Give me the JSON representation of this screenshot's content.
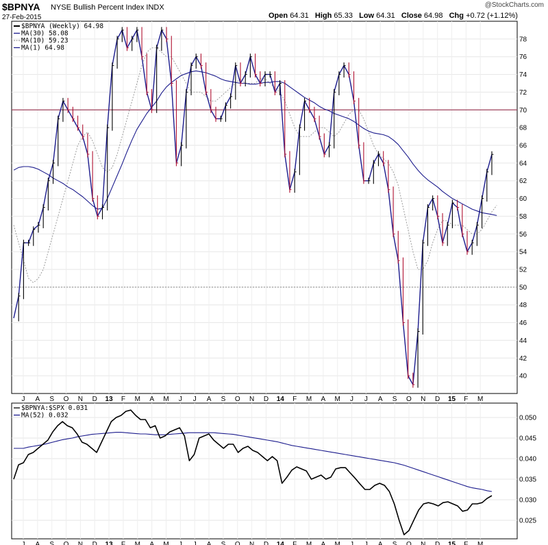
{
  "header": {
    "ticker": "$BPNYA",
    "description": "NYSE Bullish Percent Index",
    "exchange": "INDX",
    "date": "27-Feb-2015",
    "open_label": "Open",
    "open": "64.31",
    "high_label": "High",
    "high": "65.33",
    "low_label": "Low",
    "low": "64.31",
    "close_label": "Close",
    "close": "64.98",
    "chg_label": "Chg",
    "chg": "+0.72 (+1.12%)",
    "brand": "@StockCharts.com"
  },
  "chart_data": [
    {
      "type": "line",
      "legend": [
        {
          "label": "$BPNYA (Weekly) 64.98",
          "color": "#000000",
          "style": "bars"
        },
        {
          "label": "MA(30) 58.08",
          "color": "#1a1a8c",
          "style": "solid"
        },
        {
          "label": "MA(10) 59.23",
          "color": "#9a9a9a",
          "style": "dotted"
        },
        {
          "label": "MA(1) 64.98",
          "color": "#1a1a8c",
          "style": "solid"
        }
      ],
      "x_labels": [
        "J",
        "A",
        "S",
        "O",
        "N",
        "D",
        "13",
        "F",
        "M",
        "A",
        "M",
        "J",
        "J",
        "A",
        "S",
        "O",
        "N",
        "D",
        "14",
        "F",
        "M",
        "A",
        "M",
        "J",
        "J",
        "A",
        "S",
        "O",
        "N",
        "D",
        "15",
        "F",
        "M"
      ],
      "ylim": [
        38,
        80
      ],
      "yticks": [
        40,
        42,
        44,
        46,
        48,
        50,
        52,
        54,
        56,
        58,
        60,
        62,
        64,
        66,
        68,
        70,
        72,
        74,
        76,
        78
      ],
      "reference_lines": [
        {
          "value": 70,
          "color": "#8b1a3a",
          "style": "solid"
        },
        {
          "value": 50,
          "color": "#888888",
          "style": "dotted"
        }
      ],
      "series": [
        {
          "name": "$BPNYA",
          "values": [
            46.5,
            49,
            55,
            55,
            56.5,
            57,
            59,
            62,
            64,
            69,
            71,
            70,
            69,
            68,
            67,
            65,
            60,
            58,
            59,
            68,
            75,
            78,
            79,
            77,
            78,
            79,
            76,
            72,
            70,
            77,
            79,
            78,
            73,
            64,
            66,
            72,
            75,
            76,
            75,
            72,
            70,
            69,
            69,
            70.5,
            71.5,
            75,
            73,
            74,
            76,
            74,
            73,
            74,
            74,
            72,
            73,
            65,
            61,
            63,
            68,
            71,
            70,
            69,
            67,
            65,
            66,
            72,
            74,
            75,
            74,
            71,
            66,
            62,
            62,
            64,
            65,
            64,
            61,
            56,
            53,
            46,
            40,
            39,
            45,
            55,
            59,
            60,
            58,
            55,
            57,
            59.5,
            59,
            56,
            54,
            55,
            57,
            60,
            63,
            64.98
          ]
        },
        {
          "name": "MA(30)",
          "values": [
            63.2,
            63.5,
            63.6,
            63.6,
            63.5,
            63.3,
            63.0,
            62.7,
            62.3,
            62.0,
            61.7,
            61.3,
            61.0,
            60.6,
            60.2,
            59.7,
            59.2,
            58.8,
            58.9,
            60.0,
            61.3,
            62.6,
            63.9,
            65.3,
            66.6,
            67.8,
            68.7,
            69.6,
            70.3,
            71.0,
            71.9,
            72.6,
            73.1,
            73.5,
            73.9,
            74.1,
            74.3,
            74.4,
            74.3,
            74.2,
            74.0,
            73.8,
            73.5,
            73.3,
            73.2,
            73.1,
            73.0,
            73.0,
            72.9,
            72.9,
            73.0,
            73.1,
            73.1,
            73.2,
            73.2,
            73.0,
            72.6,
            72.2,
            71.8,
            71.4,
            71.1,
            70.8,
            70.4,
            70.1,
            69.9,
            69.6,
            69.4,
            69.2,
            69.0,
            68.7,
            68.3,
            67.9,
            67.6,
            67.4,
            67.3,
            67.2,
            67.0,
            66.6,
            66.1,
            65.4,
            64.7,
            63.9,
            63.2,
            62.6,
            62.1,
            61.7,
            61.3,
            60.8,
            60.4,
            60.0,
            59.7,
            59.4,
            59.1,
            58.8,
            58.6,
            58.4,
            58.3,
            58.2,
            58.08
          ]
        },
        {
          "name": "MA(10)",
          "values": [
            57,
            55,
            53,
            51,
            50.5,
            51,
            52,
            54,
            56,
            58,
            60,
            62,
            64,
            66,
            67,
            67.5,
            66.5,
            65,
            63.5,
            63,
            63.5,
            65,
            67,
            69,
            71,
            73,
            75,
            76.5,
            77,
            77,
            76.5,
            76,
            76,
            75,
            74,
            73,
            72,
            72,
            72,
            71.5,
            71,
            71,
            71.5,
            72,
            72.5,
            73,
            73.5,
            73,
            73,
            73,
            73.5,
            73.5,
            73,
            72.5,
            72,
            71,
            69.5,
            68,
            67,
            67,
            67,
            67.5,
            68,
            68,
            67.5,
            67,
            67.5,
            68.5,
            69.5,
            70,
            70,
            69,
            67.5,
            66,
            65,
            64.5,
            64,
            63,
            61.5,
            59,
            56.5,
            54,
            52,
            52,
            53,
            55,
            56.5,
            57.5,
            57.5,
            57,
            57,
            57,
            56.5,
            56,
            56,
            56.5,
            57.5,
            58.5,
            59.23
          ]
        }
      ]
    },
    {
      "type": "line",
      "legend": [
        {
          "label": "$BPNYA:$SPX 0.031",
          "color": "#000000",
          "style": "solid"
        },
        {
          "label": "MA(52) 0.032",
          "color": "#1a1a8c",
          "style": "solid"
        }
      ],
      "x_labels": [
        "J",
        "A",
        "S",
        "O",
        "N",
        "D",
        "13",
        "F",
        "M",
        "A",
        "M",
        "J",
        "J",
        "A",
        "S",
        "O",
        "N",
        "D",
        "14",
        "F",
        "M",
        "A",
        "M",
        "J",
        "J",
        "A",
        "S",
        "O",
        "N",
        "D",
        "15",
        "F",
        "M"
      ],
      "ylim": [
        0.0205,
        0.0535
      ],
      "yticks": [
        0.025,
        0.03,
        0.035,
        0.04,
        0.045,
        0.05
      ],
      "series": [
        {
          "name": "$BPNYA:$SPX",
          "values": [
            0.035,
            0.0385,
            0.039,
            0.041,
            0.0415,
            0.0425,
            0.0435,
            0.0445,
            0.0465,
            0.048,
            0.049,
            0.048,
            0.0475,
            0.046,
            0.044,
            0.0435,
            0.0425,
            0.0415,
            0.044,
            0.0465,
            0.049,
            0.05,
            0.0505,
            0.0515,
            0.0518,
            0.0505,
            0.0495,
            0.0495,
            0.0475,
            0.048,
            0.045,
            0.0455,
            0.0465,
            0.047,
            0.0475,
            0.0455,
            0.0395,
            0.041,
            0.045,
            0.0455,
            0.046,
            0.0445,
            0.0435,
            0.0425,
            0.0435,
            0.0435,
            0.0415,
            0.0425,
            0.043,
            0.042,
            0.0415,
            0.0405,
            0.0395,
            0.0405,
            0.0395,
            0.034,
            0.0355,
            0.0372,
            0.038,
            0.0375,
            0.037,
            0.035,
            0.0355,
            0.036,
            0.035,
            0.0355,
            0.0375,
            0.0378,
            0.0378,
            0.0365,
            0.0352,
            0.0338,
            0.0325,
            0.0325,
            0.0335,
            0.034,
            0.0335,
            0.032,
            0.029,
            0.025,
            0.0215,
            0.0225,
            0.025,
            0.0275,
            0.029,
            0.0293,
            0.029,
            0.0285,
            0.0293,
            0.0295,
            0.029,
            0.0285,
            0.0272,
            0.0275,
            0.029,
            0.029,
            0.0293,
            0.0303,
            0.031
          ]
        },
        {
          "name": "MA(52)",
          "values": [
            0.0425,
            0.0425,
            0.0425,
            0.0428,
            0.043,
            0.0432,
            0.0434,
            0.0437,
            0.044,
            0.0443,
            0.0446,
            0.0448,
            0.045,
            0.0453,
            0.0455,
            0.0457,
            0.0459,
            0.046,
            0.0461,
            0.0462,
            0.0463,
            0.0464,
            0.0464,
            0.0463,
            0.0462,
            0.0461,
            0.046,
            0.046,
            0.0459,
            0.0458,
            0.0458,
            0.0458,
            0.0459,
            0.046,
            0.0461,
            0.0462,
            0.0463,
            0.0463,
            0.0463,
            0.0463,
            0.0463,
            0.0463,
            0.0462,
            0.0461,
            0.046,
            0.0459,
            0.0457,
            0.0455,
            0.0453,
            0.0451,
            0.0449,
            0.0447,
            0.0445,
            0.0443,
            0.0441,
            0.0438,
            0.0435,
            0.0432,
            0.043,
            0.0428,
            0.0426,
            0.0424,
            0.0422,
            0.042,
            0.0418,
            0.0416,
            0.0414,
            0.0412,
            0.041,
            0.0408,
            0.0406,
            0.0404,
            0.0402,
            0.04,
            0.0398,
            0.0396,
            0.0394,
            0.0392,
            0.039,
            0.0387,
            0.0384,
            0.038,
            0.0376,
            0.0372,
            0.0368,
            0.0364,
            0.036,
            0.0356,
            0.0352,
            0.0348,
            0.0344,
            0.034,
            0.0336,
            0.0332,
            0.0329,
            0.0327,
            0.0325,
            0.0322,
            0.032
          ]
        }
      ]
    }
  ]
}
